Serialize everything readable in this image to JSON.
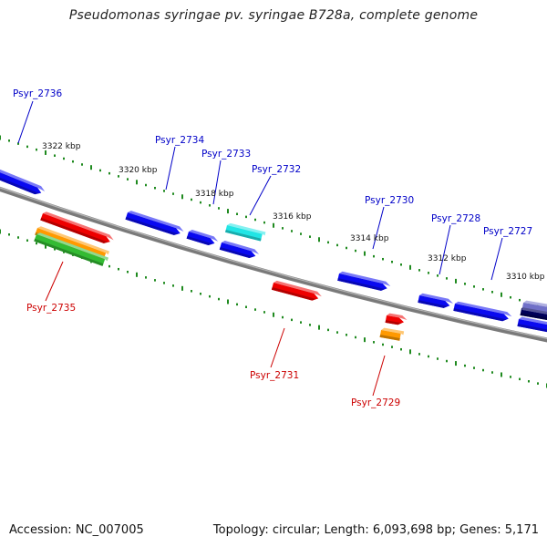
{
  "title": "Pseudomonas syringae pv. syringae B728a, complete genome",
  "footer": {
    "accession": "Accession: NC_007005",
    "stats": "Topology: circular; Length: 6,093,698 bp; Genes: 5,171"
  },
  "colors": {
    "background": "#ffffff",
    "backbone": "#808080",
    "tick": "#1f8a1f",
    "label_forward": "#0000c8",
    "label_reverse": "#cc0000",
    "gene_blue": "#0a0af0",
    "gene_red": "#ee0000",
    "gene_orange": "#ff9900",
    "gene_green": "#33bb33",
    "gene_cyan": "#22e5e5",
    "gene_navy": "#00005a",
    "gene_lavender": "#7070c8"
  },
  "scale_labels": [
    "3322 kbp",
    "3320 kbp",
    "3318 kbp",
    "3316 kbp",
    "3314 kbp",
    "3312 kbp",
    "3310 kbp"
  ],
  "gene_labels_forward": [
    "Psyr_2736",
    "Psyr_2734",
    "Psyr_2733",
    "Psyr_2732",
    "Psyr_2730",
    "Psyr_2728",
    "Psyr_2727"
  ],
  "gene_labels_reverse": [
    "Psyr_2735",
    "Psyr_2731",
    "Psyr_2729"
  ]
}
